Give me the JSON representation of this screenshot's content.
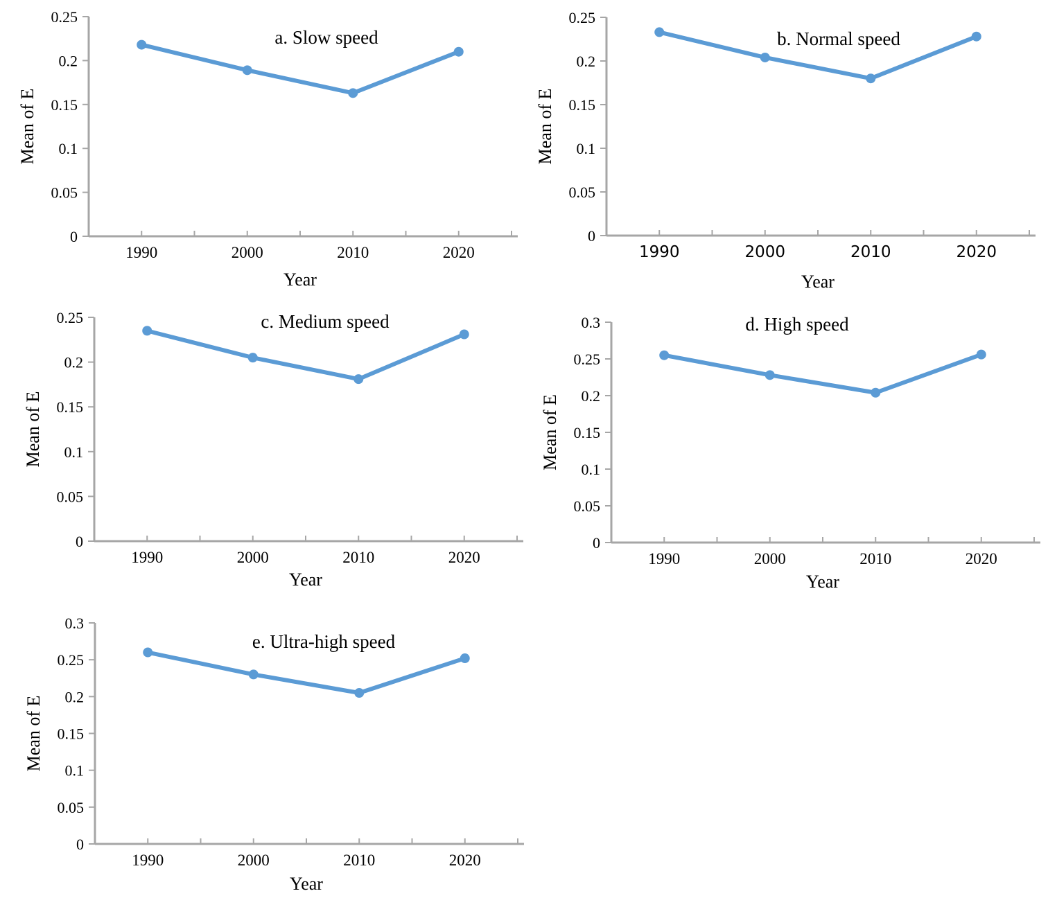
{
  "figure": {
    "background": "#ffffff",
    "colors": {
      "series_line": "#5B9BD5",
      "marker": "#5B9BD5",
      "axis": "#A6A6A6",
      "text": "#000000"
    }
  },
  "chart_data": [
    {
      "panel": "a",
      "type": "line",
      "title": "a. Slow speed",
      "xlabel": "Year",
      "ylabel": "Mean of E",
      "categories": [
        "1990",
        "2000",
        "2010",
        "2020"
      ],
      "values": [
        0.218,
        0.189,
        0.163,
        0.21
      ],
      "ylim": [
        0,
        0.25
      ],
      "ytick_labels": [
        "0",
        "0.05",
        "0.1",
        "0.15",
        "0.2",
        "0.25"
      ],
      "grid": false,
      "legend": "none",
      "marker": "circle"
    },
    {
      "panel": "b",
      "type": "line",
      "title": "b. Normal speed",
      "xlabel": "Year",
      "ylabel": "Mean of E",
      "categories": [
        "1990",
        "2000",
        "2010",
        "2020"
      ],
      "values": [
        0.233,
        0.204,
        0.18,
        0.228
      ],
      "ylim": [
        0,
        0.25
      ],
      "ytick_labels": [
        "0",
        "0.05",
        "0.1",
        "0.15",
        "0.2",
        "0.25"
      ],
      "grid": false,
      "legend": "none",
      "marker": "circle"
    },
    {
      "panel": "c",
      "type": "line",
      "title": "c. Medium speed",
      "xlabel": "Year",
      "ylabel": "Mean of E",
      "categories": [
        "1990",
        "2000",
        "2010",
        "2020"
      ],
      "values": [
        0.235,
        0.205,
        0.181,
        0.231
      ],
      "ylim": [
        0,
        0.25
      ],
      "ytick_labels": [
        "0",
        "0.05",
        "0.1",
        "0.15",
        "0.2",
        "0.25"
      ],
      "grid": false,
      "legend": "none",
      "marker": "circle"
    },
    {
      "panel": "d",
      "type": "line",
      "title": "d. High speed",
      "xlabel": "Year",
      "ylabel": "Mean of E",
      "categories": [
        "1990",
        "2000",
        "2010",
        "2020"
      ],
      "values": [
        0.255,
        0.228,
        0.204,
        0.256
      ],
      "ylim": [
        0,
        0.3
      ],
      "ytick_labels": [
        "0",
        "0.05",
        "0.1",
        "0.15",
        "0.2",
        "0.25",
        "0.3"
      ],
      "grid": false,
      "legend": "none",
      "marker": "circle"
    },
    {
      "panel": "e",
      "type": "line",
      "title": "e. Ultra-high speed",
      "xlabel": "Year",
      "ylabel": "Mean of E",
      "categories": [
        "1990",
        "2000",
        "2010",
        "2020"
      ],
      "values": [
        0.26,
        0.23,
        0.205,
        0.252
      ],
      "ylim": [
        0,
        0.3
      ],
      "ytick_labels": [
        "0",
        "0.05",
        "0.1",
        "0.15",
        "0.2",
        "0.25",
        "0.3"
      ],
      "grid": false,
      "legend": "none",
      "marker": "circle"
    }
  ]
}
